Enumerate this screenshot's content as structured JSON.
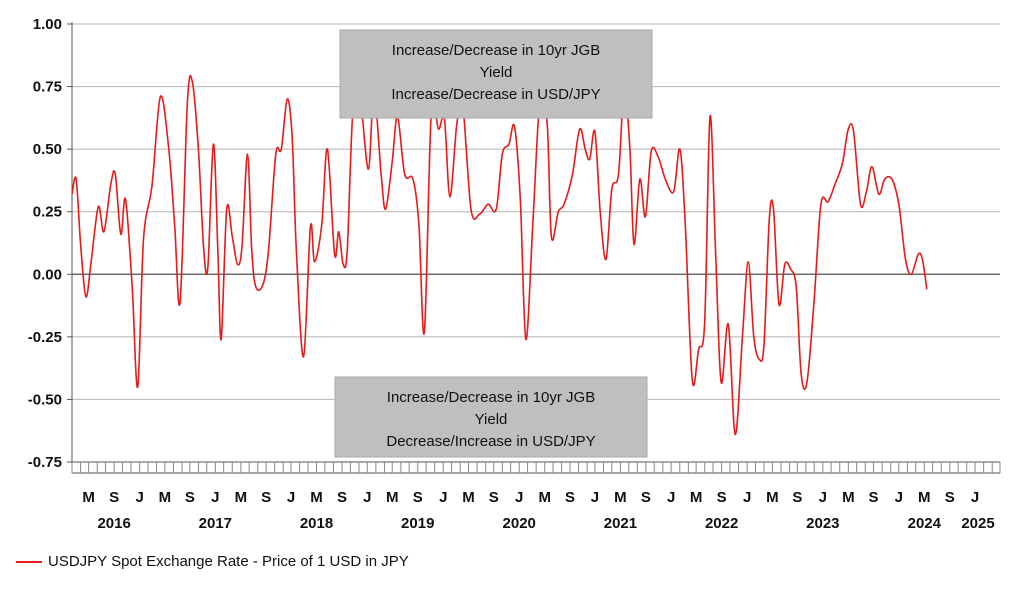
{
  "chart_data": {
    "type": "line",
    "ylim": [
      -0.75,
      1.0
    ],
    "yticks": [
      "1.00",
      "0.75",
      "0.50",
      "0.25",
      "0.00",
      "-0.25",
      "-0.50",
      "-0.75"
    ],
    "ytick_values": [
      1.0,
      0.75,
      0.5,
      0.25,
      0.0,
      -0.25,
      -0.5,
      -0.75
    ],
    "grid": true,
    "xlim": [
      "2016-01-01",
      "2025-03-01"
    ],
    "month_ticks": [
      {
        "label": "M",
        "date": "2016-03-01"
      },
      {
        "label": "S",
        "date": "2016-06-01"
      },
      {
        "label": "J",
        "date": "2016-09-01"
      },
      {
        "label": "M",
        "date": "2016-12-01"
      },
      {
        "label": "S",
        "date": "2017-03-01"
      },
      {
        "label": "J",
        "date": "2017-06-01"
      },
      {
        "label": "M",
        "date": "2017-09-01"
      },
      {
        "label": "S",
        "date": "2017-12-01"
      },
      {
        "label": "J",
        "date": "2018-03-01"
      },
      {
        "label": "M",
        "date": "2018-06-01"
      },
      {
        "label": "S",
        "date": "2018-09-01"
      },
      {
        "label": "J",
        "date": "2018-12-01"
      },
      {
        "label": "M",
        "date": "2019-03-01"
      },
      {
        "label": "S",
        "date": "2019-06-01"
      },
      {
        "label": "J",
        "date": "2019-09-01"
      },
      {
        "label": "M",
        "date": "2019-12-01"
      },
      {
        "label": "S",
        "date": "2020-03-01"
      },
      {
        "label": "J",
        "date": "2020-06-01"
      },
      {
        "label": "M",
        "date": "2020-09-01"
      },
      {
        "label": "S",
        "date": "2020-12-01"
      },
      {
        "label": "J",
        "date": "2021-03-01"
      },
      {
        "label": "M",
        "date": "2021-06-01"
      },
      {
        "label": "S",
        "date": "2021-09-01"
      },
      {
        "label": "J",
        "date": "2021-12-01"
      },
      {
        "label": "M",
        "date": "2022-03-01"
      },
      {
        "label": "S",
        "date": "2022-06-01"
      },
      {
        "label": "J",
        "date": "2022-09-01"
      },
      {
        "label": "M",
        "date": "2022-12-01"
      },
      {
        "label": "S",
        "date": "2023-03-01"
      },
      {
        "label": "J",
        "date": "2023-06-01"
      },
      {
        "label": "M",
        "date": "2023-09-01"
      },
      {
        "label": "S",
        "date": "2023-12-01"
      },
      {
        "label": "J",
        "date": "2024-03-01"
      },
      {
        "label": "M",
        "date": "2024-06-01"
      },
      {
        "label": "S",
        "date": "2024-09-01"
      },
      {
        "label": "J",
        "date": "2024-12-01"
      }
    ],
    "year_labels": [
      {
        "label": "2016",
        "date": "2016-06-01"
      },
      {
        "label": "2017",
        "date": "2017-06-01"
      },
      {
        "label": "2018",
        "date": "2018-06-01"
      },
      {
        "label": "2019",
        "date": "2019-06-01"
      },
      {
        "label": "2020",
        "date": "2020-06-01"
      },
      {
        "label": "2021",
        "date": "2021-06-01"
      },
      {
        "label": "2022",
        "date": "2022-06-01"
      },
      {
        "label": "2023",
        "date": "2023-06-01"
      },
      {
        "label": "2024",
        "date": "2024-06-01"
      },
      {
        "label": "2025",
        "date": "2025-01-01"
      }
    ],
    "series": [
      {
        "name": "USDJPY Spot Exchange Rate - Price of 1 USD in JPY",
        "color": "#e31b1b",
        "points": [
          [
            "2016-01-01",
            0.32
          ],
          [
            "2016-01-16",
            0.38
          ],
          [
            "2016-02-01",
            0.12
          ],
          [
            "2016-02-20",
            -0.09
          ],
          [
            "2016-03-10",
            0.05
          ],
          [
            "2016-04-05",
            0.27
          ],
          [
            "2016-04-25",
            0.17
          ],
          [
            "2016-05-20",
            0.36
          ],
          [
            "2016-06-05",
            0.4
          ],
          [
            "2016-06-25",
            0.16
          ],
          [
            "2016-07-12",
            0.3
          ],
          [
            "2016-08-05",
            -0.05
          ],
          [
            "2016-08-25",
            -0.45
          ],
          [
            "2016-09-15",
            0.14
          ],
          [
            "2016-10-15",
            0.35
          ],
          [
            "2016-11-15",
            0.71
          ],
          [
            "2016-12-15",
            0.5
          ],
          [
            "2017-01-05",
            0.2
          ],
          [
            "2017-01-25",
            -0.11
          ],
          [
            "2017-02-20",
            0.68
          ],
          [
            "2017-03-10",
            0.77
          ],
          [
            "2017-04-01",
            0.5
          ],
          [
            "2017-04-20",
            0.1
          ],
          [
            "2017-05-05",
            0.03
          ],
          [
            "2017-05-25",
            0.52
          ],
          [
            "2017-06-10",
            0.1
          ],
          [
            "2017-06-22",
            -0.26
          ],
          [
            "2017-07-12",
            0.26
          ],
          [
            "2017-08-01",
            0.15
          ],
          [
            "2017-08-20",
            0.04
          ],
          [
            "2017-09-05",
            0.11
          ],
          [
            "2017-09-25",
            0.48
          ],
          [
            "2017-10-10",
            0.1
          ],
          [
            "2017-10-25",
            -0.05
          ],
          [
            "2017-11-20",
            -0.04
          ],
          [
            "2017-12-10",
            0.1
          ],
          [
            "2018-01-05",
            0.48
          ],
          [
            "2018-01-25",
            0.5
          ],
          [
            "2018-02-15",
            0.7
          ],
          [
            "2018-03-05",
            0.55
          ],
          [
            "2018-03-20",
            0.1
          ],
          [
            "2018-04-15",
            -0.33
          ],
          [
            "2018-05-10",
            0.19
          ],
          [
            "2018-05-25",
            0.05
          ],
          [
            "2018-06-20",
            0.2
          ],
          [
            "2018-07-10",
            0.5
          ],
          [
            "2018-08-05",
            0.08
          ],
          [
            "2018-08-20",
            0.17
          ],
          [
            "2018-09-05",
            0.04
          ],
          [
            "2018-09-20",
            0.1
          ],
          [
            "2018-10-10",
            0.65
          ],
          [
            "2018-11-05",
            0.7
          ],
          [
            "2018-12-05",
            0.42
          ],
          [
            "2018-12-25",
            0.73
          ],
          [
            "2019-01-20",
            0.4
          ],
          [
            "2019-02-05",
            0.26
          ],
          [
            "2019-03-01",
            0.45
          ],
          [
            "2019-03-20",
            0.63
          ],
          [
            "2019-04-15",
            0.4
          ],
          [
            "2019-05-15",
            0.38
          ],
          [
            "2019-06-05",
            0.2
          ],
          [
            "2019-06-25",
            -0.23
          ],
          [
            "2019-07-20",
            0.65
          ],
          [
            "2019-08-15",
            0.58
          ],
          [
            "2019-09-05",
            0.62
          ],
          [
            "2019-09-25",
            0.31
          ],
          [
            "2019-10-20",
            0.6
          ],
          [
            "2019-11-10",
            0.68
          ],
          [
            "2019-12-10",
            0.26
          ],
          [
            "2020-01-10",
            0.24
          ],
          [
            "2020-02-10",
            0.28
          ],
          [
            "2020-03-10",
            0.26
          ],
          [
            "2020-04-01",
            0.48
          ],
          [
            "2020-04-25",
            0.52
          ],
          [
            "2020-05-15",
            0.59
          ],
          [
            "2020-06-05",
            0.3
          ],
          [
            "2020-06-25",
            -0.26
          ],
          [
            "2020-07-20",
            0.2
          ],
          [
            "2020-08-15",
            0.7
          ],
          [
            "2020-09-10",
            0.6
          ],
          [
            "2020-09-25",
            0.15
          ],
          [
            "2020-10-20",
            0.25
          ],
          [
            "2020-11-10",
            0.28
          ],
          [
            "2020-12-10",
            0.4
          ],
          [
            "2021-01-05",
            0.58
          ],
          [
            "2021-01-25",
            0.5
          ],
          [
            "2021-02-10",
            0.46
          ],
          [
            "2021-03-01",
            0.57
          ],
          [
            "2021-03-20",
            0.25
          ],
          [
            "2021-04-10",
            0.06
          ],
          [
            "2021-05-01",
            0.34
          ],
          [
            "2021-05-25",
            0.4
          ],
          [
            "2021-06-15",
            0.75
          ],
          [
            "2021-07-05",
            0.5
          ],
          [
            "2021-07-20",
            0.12
          ],
          [
            "2021-08-10",
            0.38
          ],
          [
            "2021-08-30",
            0.23
          ],
          [
            "2021-09-20",
            0.49
          ],
          [
            "2021-10-15",
            0.47
          ],
          [
            "2021-11-10",
            0.38
          ],
          [
            "2021-12-10",
            0.33
          ],
          [
            "2022-01-01",
            0.5
          ],
          [
            "2022-01-20",
            0.22
          ],
          [
            "2022-02-15",
            -0.42
          ],
          [
            "2022-03-10",
            -0.3
          ],
          [
            "2022-04-01",
            -0.19
          ],
          [
            "2022-04-20",
            0.63
          ],
          [
            "2022-05-10",
            0.1
          ],
          [
            "2022-05-30",
            -0.43
          ],
          [
            "2022-06-25",
            -0.2
          ],
          [
            "2022-07-20",
            -0.64
          ],
          [
            "2022-08-15",
            -0.25
          ],
          [
            "2022-09-05",
            0.05
          ],
          [
            "2022-09-25",
            -0.25
          ],
          [
            "2022-10-15",
            -0.34
          ],
          [
            "2022-11-01",
            -0.28
          ],
          [
            "2022-11-20",
            0.22
          ],
          [
            "2022-12-05",
            0.26
          ],
          [
            "2022-12-25",
            -0.12
          ],
          [
            "2023-01-15",
            0.04
          ],
          [
            "2023-02-05",
            0.02
          ],
          [
            "2023-02-25",
            -0.05
          ],
          [
            "2023-03-15",
            -0.4
          ],
          [
            "2023-04-05",
            -0.43
          ],
          [
            "2023-05-01",
            -0.1
          ],
          [
            "2023-05-25",
            0.28
          ],
          [
            "2023-06-20",
            0.29
          ],
          [
            "2023-07-15",
            0.36
          ],
          [
            "2023-08-10",
            0.44
          ],
          [
            "2023-09-01",
            0.58
          ],
          [
            "2023-09-20",
            0.57
          ],
          [
            "2023-10-15",
            0.28
          ],
          [
            "2023-11-05",
            0.33
          ],
          [
            "2023-11-25",
            0.43
          ],
          [
            "2023-12-20",
            0.32
          ],
          [
            "2024-01-10",
            0.38
          ],
          [
            "2024-02-05",
            0.38
          ],
          [
            "2024-03-01",
            0.28
          ],
          [
            "2024-03-25",
            0.06
          ],
          [
            "2024-04-15",
            0.0
          ],
          [
            "2024-05-10",
            0.08
          ],
          [
            "2024-05-25",
            0.06
          ],
          [
            "2024-06-10",
            -0.06
          ]
        ]
      }
    ],
    "annotations": [
      {
        "id": "upper",
        "lines": [
          "Increase/Decrease in 10yr JGB",
          "Yield",
          "Increase/Decrease in USD/JPY"
        ]
      },
      {
        "id": "lower",
        "lines": [
          "Increase/Decrease in 10yr JGB",
          "Yield",
          "Decrease/Increase in USD/JPY"
        ]
      }
    ],
    "legend": {
      "position": "bottom-left",
      "label": "USDJPY Spot Exchange Rate - Price of 1 USD in JPY"
    }
  }
}
